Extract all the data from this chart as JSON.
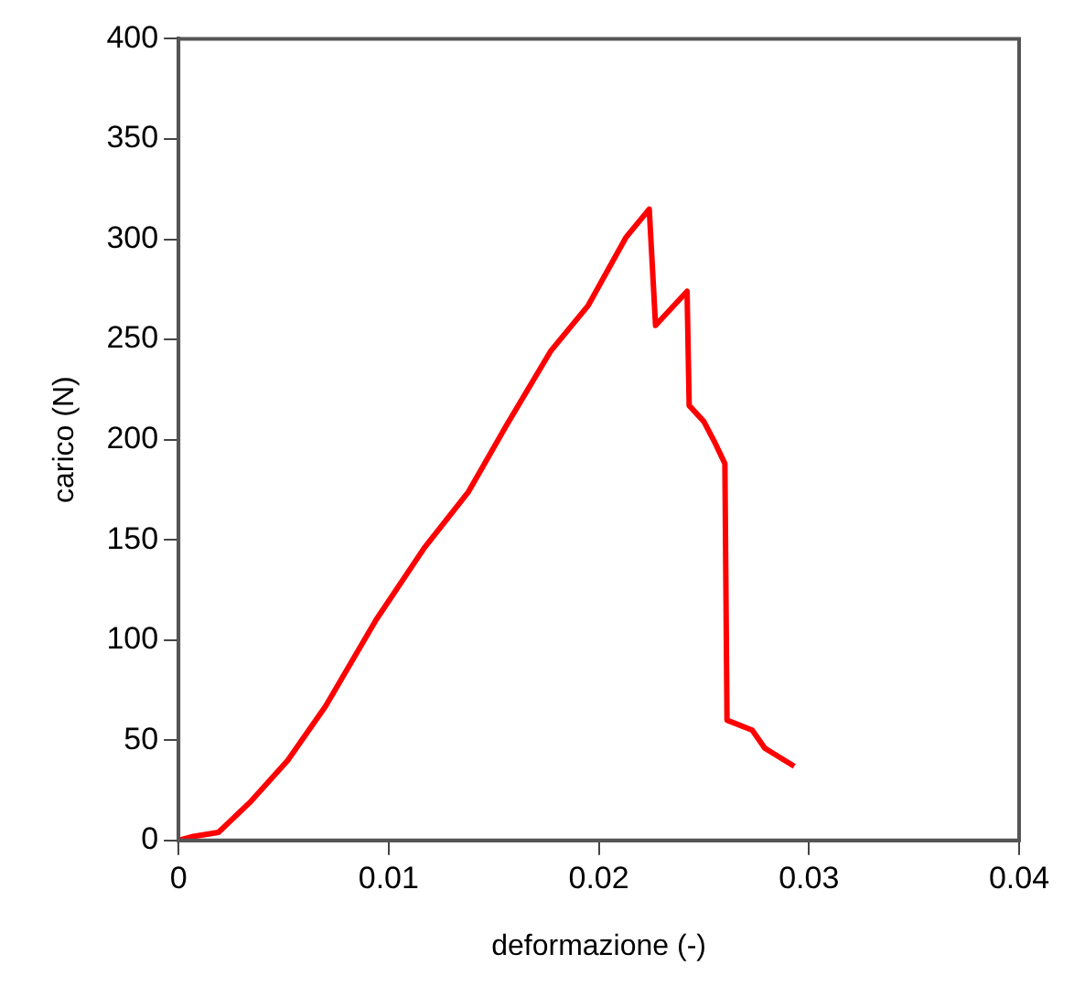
{
  "chart_data": {
    "type": "line",
    "xlabel": "deformazione (-)",
    "ylabel": "carico (N)",
    "xlim": [
      0,
      0.04
    ],
    "xticks": [
      {
        "value": 0,
        "label": "0"
      },
      {
        "value": 0.01,
        "label": "0.01"
      },
      {
        "value": 0.02,
        "label": "0.02"
      },
      {
        "value": 0.03,
        "label": "0.03"
      },
      {
        "value": 0.04,
        "label": "0.04"
      }
    ],
    "ylim": [
      0,
      400
    ],
    "yticks": [
      0,
      50,
      100,
      150,
      200,
      250,
      300,
      350,
      400
    ],
    "grid": false,
    "legend": false,
    "marker": "none",
    "line_style": "solid",
    "series": [
      {
        "color": "#ff0000",
        "x": [
          0,
          0.0007,
          0.0019,
          0.0034,
          0.0052,
          0.007,
          0.0094,
          0.0117,
          0.0138,
          0.0156,
          0.0177,
          0.0195,
          0.0213,
          0.0224,
          0.0227,
          0.0242,
          0.0243,
          0.025,
          0.0255,
          0.026,
          0.0261,
          0.0273,
          0.0279,
          0.0293
        ],
        "values": [
          0,
          2,
          4,
          19,
          40,
          67,
          110,
          146,
          174,
          207,
          244,
          267,
          301,
          315,
          257,
          274,
          217,
          209,
          199,
          188,
          60,
          55,
          46,
          37
        ]
      }
    ]
  }
}
